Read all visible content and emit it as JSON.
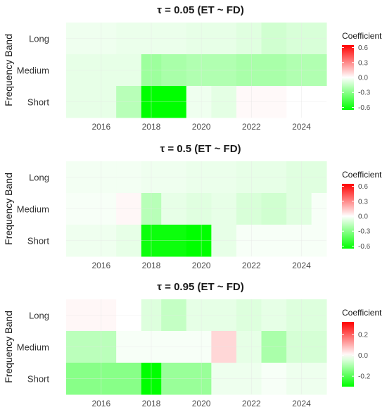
{
  "chart_data": [
    {
      "type": "heatmap",
      "title": "τ = 0.05  (ET ~ FD)",
      "ylabel": "Frequency Band",
      "xlabel": "",
      "x_ticks": [
        2016,
        2018,
        2020,
        2022,
        2024
      ],
      "y_categories": [
        "Short",
        "Medium",
        "Long"
      ],
      "x_range": [
        2014.6,
        2025.0
      ],
      "grid": true,
      "legend": {
        "title": "Coefficient",
        "ticks": [
          0.6,
          0.3,
          0.0,
          -0.3,
          -0.6
        ],
        "range": [
          -0.65,
          0.65
        ],
        "position": "right"
      },
      "series": [
        {
          "name": "Long",
          "segments": [
            {
              "x0": 2014.6,
              "x1": 2016.6,
              "value": -0.04
            },
            {
              "x0": 2016.6,
              "x1": 2017.6,
              "value": -0.05
            },
            {
              "x0": 2017.6,
              "x1": 2019.4,
              "value": -0.05
            },
            {
              "x0": 2019.4,
              "x1": 2021.4,
              "value": -0.06
            },
            {
              "x0": 2021.4,
              "x1": 2022.4,
              "value": -0.08
            },
            {
              "x0": 2022.4,
              "x1": 2023.4,
              "value": -0.12
            },
            {
              "x0": 2023.4,
              "x1": 2025.0,
              "value": -0.1
            }
          ]
        },
        {
          "name": "Medium",
          "segments": [
            {
              "x0": 2014.6,
              "x1": 2016.6,
              "value": -0.06
            },
            {
              "x0": 2016.6,
              "x1": 2017.6,
              "value": -0.06
            },
            {
              "x0": 2017.6,
              "x1": 2018.4,
              "value": -0.25
            },
            {
              "x0": 2018.4,
              "x1": 2019.4,
              "value": -0.22
            },
            {
              "x0": 2019.4,
              "x1": 2021.4,
              "value": -0.2
            },
            {
              "x0": 2021.4,
              "x1": 2023.4,
              "value": -0.22
            },
            {
              "x0": 2023.4,
              "x1": 2025.0,
              "value": -0.2
            }
          ]
        },
        {
          "name": "Short",
          "segments": [
            {
              "x0": 2014.6,
              "x1": 2016.6,
              "value": -0.06
            },
            {
              "x0": 2016.6,
              "x1": 2017.6,
              "value": -0.18
            },
            {
              "x0": 2017.6,
              "x1": 2019.4,
              "value": -0.65
            },
            {
              "x0": 2019.4,
              "x1": 2020.4,
              "value": -0.04
            },
            {
              "x0": 2020.4,
              "x1": 2021.4,
              "value": -0.07
            },
            {
              "x0": 2021.4,
              "x1": 2023.4,
              "value": 0.015
            },
            {
              "x0": 2023.4,
              "x1": 2025.0,
              "value": 0.0
            }
          ]
        }
      ]
    },
    {
      "type": "heatmap",
      "title": "τ = 0.5  (ET ~ FD)",
      "ylabel": "Frequency Band",
      "xlabel": "",
      "x_ticks": [
        2016,
        2018,
        2020,
        2022,
        2024
      ],
      "y_categories": [
        "Short",
        "Medium",
        "Long"
      ],
      "x_range": [
        2014.6,
        2025.0
      ],
      "grid": true,
      "legend": {
        "title": "Coefficient",
        "ticks": [
          0.6,
          0.3,
          0.0,
          -0.3,
          -0.6
        ],
        "range": [
          -0.65,
          0.65
        ],
        "position": "right"
      },
      "series": [
        {
          "name": "Long",
          "segments": [
            {
              "x0": 2014.6,
              "x1": 2016.6,
              "value": -0.03
            },
            {
              "x0": 2016.6,
              "x1": 2017.6,
              "value": -0.03
            },
            {
              "x0": 2017.6,
              "x1": 2019.4,
              "value": -0.04
            },
            {
              "x0": 2019.4,
              "x1": 2021.4,
              "value": -0.05
            },
            {
              "x0": 2021.4,
              "x1": 2022.4,
              "value": -0.06
            },
            {
              "x0": 2022.4,
              "x1": 2023.4,
              "value": -0.06
            },
            {
              "x0": 2023.4,
              "x1": 2025.0,
              "value": -0.08
            }
          ]
        },
        {
          "name": "Medium",
          "segments": [
            {
              "x0": 2014.6,
              "x1": 2016.6,
              "value": -0.02
            },
            {
              "x0": 2016.6,
              "x1": 2017.6,
              "value": 0.02
            },
            {
              "x0": 2017.6,
              "x1": 2018.4,
              "value": -0.18
            },
            {
              "x0": 2018.4,
              "x1": 2019.4,
              "value": -0.06
            },
            {
              "x0": 2019.4,
              "x1": 2020.4,
              "value": -0.08
            },
            {
              "x0": 2020.4,
              "x1": 2021.4,
              "value": -0.06
            },
            {
              "x0": 2021.4,
              "x1": 2022.4,
              "value": -0.1
            },
            {
              "x0": 2022.4,
              "x1": 2023.4,
              "value": -0.12
            },
            {
              "x0": 2023.4,
              "x1": 2024.4,
              "value": -0.08
            },
            {
              "x0": 2024.4,
              "x1": 2025.0,
              "value": -0.02
            }
          ]
        },
        {
          "name": "Short",
          "segments": [
            {
              "x0": 2014.6,
              "x1": 2016.6,
              "value": -0.04
            },
            {
              "x0": 2016.6,
              "x1": 2017.6,
              "value": -0.06
            },
            {
              "x0": 2017.6,
              "x1": 2019.4,
              "value": -0.62
            },
            {
              "x0": 2019.4,
              "x1": 2020.4,
              "value": -0.65
            },
            {
              "x0": 2020.4,
              "x1": 2021.4,
              "value": -0.06
            },
            {
              "x0": 2021.4,
              "x1": 2025.0,
              "value": -0.02
            }
          ]
        }
      ]
    },
    {
      "type": "heatmap",
      "title": "τ = 0.95  (ET ~ FD)",
      "ylabel": "Frequency Band",
      "xlabel": "",
      "x_ticks": [
        2016,
        2018,
        2020,
        2022,
        2024
      ],
      "y_categories": [
        "Short",
        "Medium",
        "Long"
      ],
      "x_range": [
        2014.6,
        2025.0
      ],
      "grid": true,
      "legend": {
        "title": "Coefficient",
        "ticks": [
          0.2,
          0.0,
          -0.2
        ],
        "range": [
          -0.3,
          0.32
        ],
        "position": "right"
      },
      "series": [
        {
          "name": "Long",
          "segments": [
            {
              "x0": 2014.6,
              "x1": 2016.6,
              "value": 0.01
            },
            {
              "x0": 2016.6,
              "x1": 2017.6,
              "value": 0.0
            },
            {
              "x0": 2017.6,
              "x1": 2018.4,
              "value": -0.04
            },
            {
              "x0": 2018.4,
              "x1": 2019.4,
              "value": -0.07
            },
            {
              "x0": 2019.4,
              "x1": 2021.4,
              "value": -0.03
            },
            {
              "x0": 2021.4,
              "x1": 2022.4,
              "value": -0.04
            },
            {
              "x0": 2022.4,
              "x1": 2023.4,
              "value": -0.03
            },
            {
              "x0": 2023.4,
              "x1": 2025.0,
              "value": -0.04
            }
          ]
        },
        {
          "name": "Medium",
          "segments": [
            {
              "x0": 2014.6,
              "x1": 2016.6,
              "value": -0.08
            },
            {
              "x0": 2016.6,
              "x1": 2017.6,
              "value": -0.01
            },
            {
              "x0": 2017.6,
              "x1": 2020.4,
              "value": -0.01
            },
            {
              "x0": 2020.4,
              "x1": 2021.4,
              "value": 0.05
            },
            {
              "x0": 2021.4,
              "x1": 2022.4,
              "value": -0.03
            },
            {
              "x0": 2022.4,
              "x1": 2023.4,
              "value": -0.1
            },
            {
              "x0": 2023.4,
              "x1": 2025.0,
              "value": -0.05
            }
          ]
        },
        {
          "name": "Short",
          "segments": [
            {
              "x0": 2014.6,
              "x1": 2016.6,
              "value": -0.14
            },
            {
              "x0": 2016.6,
              "x1": 2017.6,
              "value": -0.14
            },
            {
              "x0": 2017.6,
              "x1": 2018.4,
              "value": -0.3
            },
            {
              "x0": 2018.4,
              "x1": 2020.4,
              "value": -0.12
            },
            {
              "x0": 2020.4,
              "x1": 2021.4,
              "value": -0.02
            },
            {
              "x0": 2021.4,
              "x1": 2022.4,
              "value": -0.02
            },
            {
              "x0": 2022.4,
              "x1": 2023.4,
              "value": -0.01
            },
            {
              "x0": 2023.4,
              "x1": 2025.0,
              "value": -0.02
            }
          ]
        }
      ]
    }
  ]
}
